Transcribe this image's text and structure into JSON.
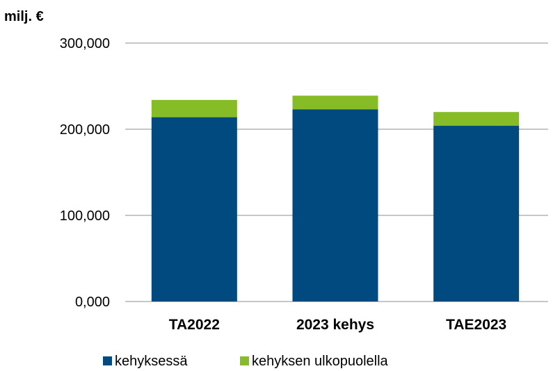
{
  "chart_data": {
    "type": "bar",
    "stacked": true,
    "unit_label": "milj. €",
    "categories": [
      "TA2022",
      "2023 kehys",
      "TAE2023"
    ],
    "series": [
      {
        "name": "kehyksessä",
        "color": "#004A80",
        "values": [
          214,
          223,
          204
        ]
      },
      {
        "name": "kehyksen ulkopuolella",
        "color": "#86BC25",
        "values": [
          20,
          16,
          16
        ]
      }
    ],
    "y_ticks": [
      "0,000",
      "100,000",
      "200,000",
      "300,000"
    ],
    "y_tick_values": [
      0,
      100,
      200,
      300
    ],
    "ylim": [
      0,
      300
    ],
    "grid": true,
    "legend_position": "bottom"
  }
}
